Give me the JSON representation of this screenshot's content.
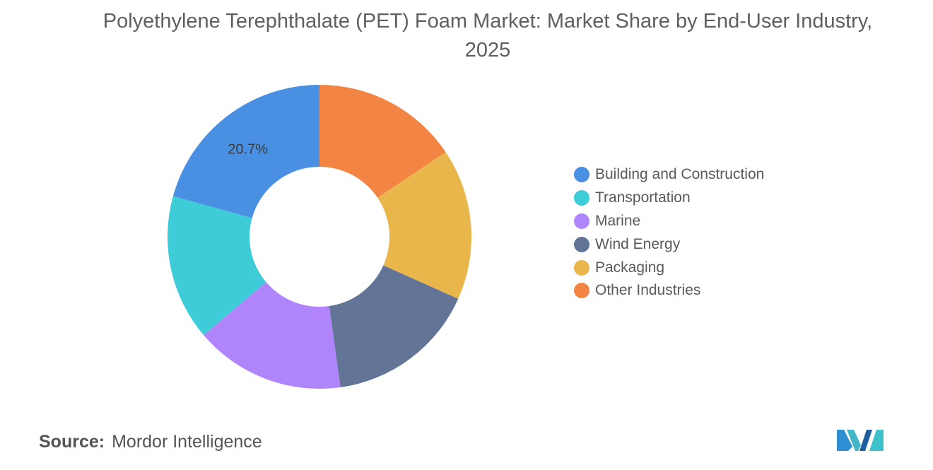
{
  "title": "Polyethylene Terephthalate (PET) Foam Market: Market Share by End-User Industry, 2025",
  "source": {
    "label": "Source:",
    "value": "Mordor Intelligence"
  },
  "colors": {
    "Building and Construction": "#4a90e2",
    "Transportation": "#3ecdd8",
    "Marine": "#b085fb",
    "Wind Energy": "#627597",
    "Packaging": "#e9b64c",
    "Other Industries": "#f28444"
  },
  "chart_data": {
    "type": "pie",
    "donut": true,
    "title": "Polyethylene Terephthalate (PET) Foam Market: Market Share by End-User Industry, 2025",
    "unit": "%",
    "categories": [
      "Other Industries",
      "Packaging",
      "Wind Energy",
      "Marine",
      "Transportation",
      "Building and Construction"
    ],
    "values": [
      15.6,
      16.1,
      16.1,
      16.0,
      15.5,
      20.7
    ],
    "data_labels": [
      {
        "category": "Building and Construction",
        "text": "20.7%"
      }
    ],
    "legend": {
      "position": "right",
      "entries": [
        "Building and Construction",
        "Transportation",
        "Marine",
        "Wind Energy",
        "Packaging",
        "Other Industries"
      ]
    }
  }
}
